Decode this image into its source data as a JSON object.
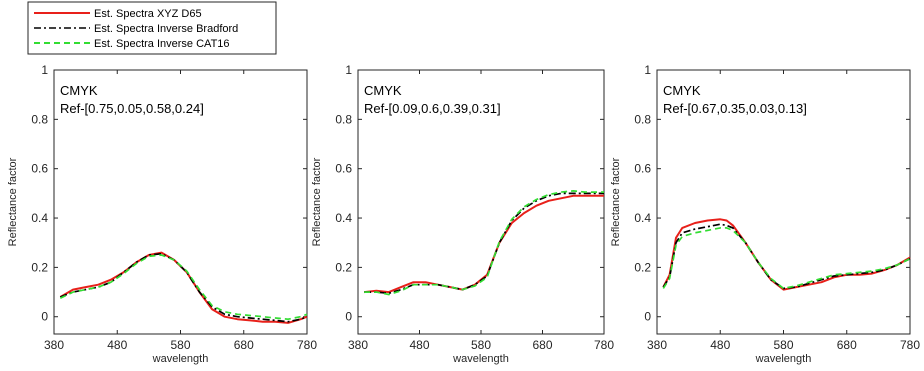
{
  "legend": {
    "position": "top-left (above panels)",
    "entries": [
      {
        "label": "Est. Spectra XYZ D65",
        "color": "#e8201a",
        "dash": "solid"
      },
      {
        "label": "Est. Spectra Inverse Bradford",
        "color": "#000000",
        "dash": "dashdot"
      },
      {
        "label": "Est. Spectra Inverse CAT16",
        "color": "#33dd33",
        "dash": "dashed"
      }
    ]
  },
  "chart_data": [
    {
      "type": "line",
      "xlabel": "wavelength",
      "ylabel": "Reflectance factor",
      "xlim": [
        380,
        780
      ],
      "ylim": [
        -0.07,
        1
      ],
      "xticks": [
        "380",
        "480",
        "580",
        "680",
        "780"
      ],
      "yticks": [
        "0",
        "0.2",
        "0.4",
        "0.6",
        "0.8",
        "1"
      ],
      "annotations": [
        "CMYK",
        "Ref-[0.75,0.05,0.58,0.24]"
      ],
      "grid": false,
      "x": [
        390,
        410,
        430,
        450,
        470,
        490,
        510,
        530,
        550,
        570,
        590,
        610,
        630,
        650,
        670,
        690,
        710,
        730,
        750,
        770,
        780
      ],
      "series": [
        {
          "name": "Est. Spectra XYZ D65",
          "values": [
            0.08,
            0.11,
            0.12,
            0.13,
            0.15,
            0.18,
            0.22,
            0.25,
            0.26,
            0.23,
            0.18,
            0.1,
            0.03,
            0.0,
            -0.01,
            -0.015,
            -0.02,
            -0.02,
            -0.025,
            -0.01,
            0.0
          ]
        },
        {
          "name": "Est. Spectra Inverse Bradford",
          "values": [
            0.08,
            0.1,
            0.11,
            0.12,
            0.14,
            0.18,
            0.22,
            0.25,
            0.255,
            0.23,
            0.18,
            0.1,
            0.04,
            0.01,
            0.0,
            -0.005,
            -0.01,
            -0.015,
            -0.02,
            -0.01,
            0.0
          ]
        },
        {
          "name": "Est. Spectra Inverse CAT16",
          "values": [
            0.075,
            0.1,
            0.11,
            0.12,
            0.14,
            0.175,
            0.215,
            0.245,
            0.25,
            0.23,
            0.185,
            0.11,
            0.045,
            0.02,
            0.01,
            0.005,
            0.0,
            -0.005,
            -0.01,
            0.0,
            0.01
          ]
        }
      ]
    },
    {
      "type": "line",
      "xlabel": "wavelength",
      "ylabel": "Reflectance factor",
      "xlim": [
        380,
        780
      ],
      "ylim": [
        -0.07,
        1
      ],
      "xticks": [
        "380",
        "480",
        "580",
        "680",
        "780"
      ],
      "yticks": [
        "0",
        "0.2",
        "0.4",
        "0.6",
        "0.8",
        "1"
      ],
      "annotations": [
        "CMYK",
        "Ref-[0.09,0.6,0.39,0.31]"
      ],
      "grid": false,
      "x": [
        390,
        410,
        430,
        450,
        470,
        490,
        510,
        530,
        550,
        570,
        590,
        610,
        630,
        650,
        670,
        690,
        710,
        730,
        750,
        770,
        780
      ],
      "series": [
        {
          "name": "Est. Spectra XYZ D65",
          "values": [
            0.1,
            0.105,
            0.1,
            0.12,
            0.14,
            0.14,
            0.13,
            0.12,
            0.11,
            0.13,
            0.17,
            0.3,
            0.38,
            0.42,
            0.45,
            0.47,
            0.48,
            0.49,
            0.49,
            0.49,
            0.49
          ]
        },
        {
          "name": "Est. Spectra Inverse Bradford",
          "values": [
            0.1,
            0.1,
            0.095,
            0.11,
            0.13,
            0.13,
            0.13,
            0.12,
            0.11,
            0.13,
            0.165,
            0.3,
            0.39,
            0.44,
            0.47,
            0.49,
            0.5,
            0.5,
            0.5,
            0.5,
            0.5
          ]
        },
        {
          "name": "Est. Spectra Inverse CAT16",
          "values": [
            0.1,
            0.1,
            0.09,
            0.105,
            0.13,
            0.13,
            0.13,
            0.12,
            0.11,
            0.125,
            0.16,
            0.305,
            0.395,
            0.445,
            0.475,
            0.495,
            0.505,
            0.51,
            0.505,
            0.505,
            0.505
          ]
        }
      ]
    },
    {
      "type": "line",
      "xlabel": "wavelength",
      "ylabel": "Reflectance factor",
      "xlim": [
        380,
        780
      ],
      "ylim": [
        -0.07,
        1
      ],
      "xticks": [
        "380",
        "480",
        "580",
        "680",
        "780"
      ],
      "yticks": [
        "0",
        "0.2",
        "0.4",
        "0.6",
        "0.8",
        "1"
      ],
      "annotations": [
        "CMYK",
        "Ref-[0.67,0.35,0.03,0.13]"
      ],
      "grid": false,
      "x": [
        390,
        400,
        410,
        420,
        440,
        460,
        480,
        490,
        500,
        520,
        540,
        560,
        580,
        600,
        620,
        640,
        660,
        680,
        700,
        720,
        740,
        760,
        780
      ],
      "series": [
        {
          "name": "Est. Spectra XYZ D65",
          "values": [
            0.12,
            0.17,
            0.32,
            0.36,
            0.38,
            0.39,
            0.395,
            0.39,
            0.37,
            0.3,
            0.22,
            0.15,
            0.11,
            0.12,
            0.13,
            0.14,
            0.16,
            0.17,
            0.17,
            0.175,
            0.19,
            0.21,
            0.24
          ]
        },
        {
          "name": "Est. Spectra Inverse Bradford",
          "values": [
            0.12,
            0.16,
            0.3,
            0.34,
            0.355,
            0.365,
            0.375,
            0.37,
            0.36,
            0.3,
            0.22,
            0.15,
            0.115,
            0.12,
            0.135,
            0.15,
            0.165,
            0.17,
            0.175,
            0.18,
            0.19,
            0.21,
            0.235
          ]
        },
        {
          "name": "Est. Spectra Inverse CAT16",
          "values": [
            0.115,
            0.155,
            0.29,
            0.325,
            0.34,
            0.35,
            0.36,
            0.36,
            0.35,
            0.3,
            0.22,
            0.155,
            0.115,
            0.125,
            0.14,
            0.155,
            0.17,
            0.175,
            0.18,
            0.185,
            0.195,
            0.21,
            0.235
          ]
        }
      ]
    }
  ]
}
